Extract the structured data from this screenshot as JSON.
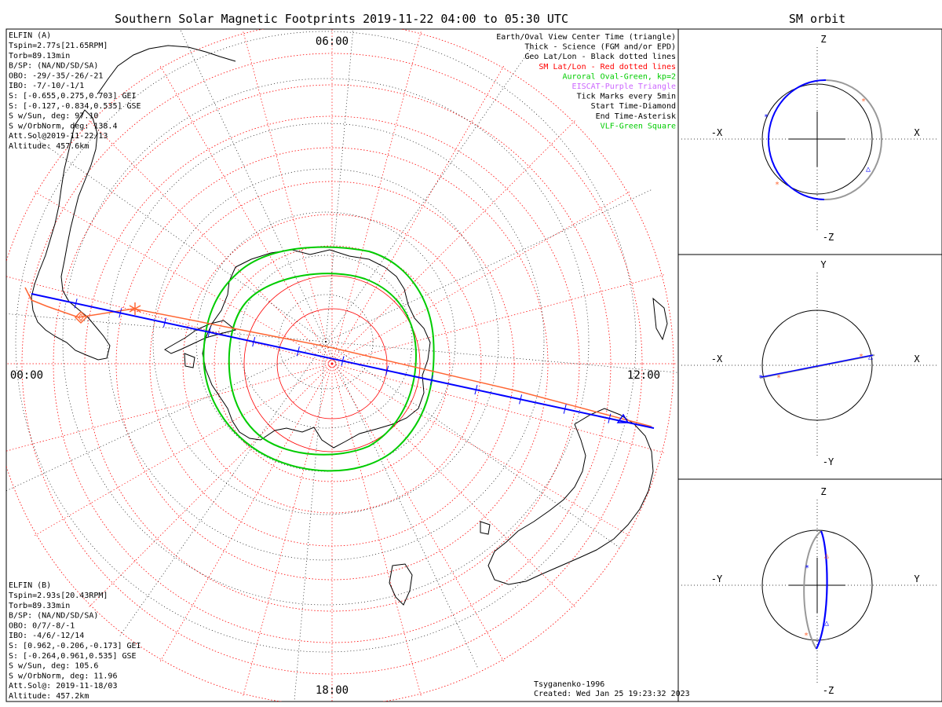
{
  "title": "Southern Solar Magnetic Footprints 2019-11-22 04:00 to 05:30 UTC",
  "right_title": "SM orbit",
  "colors": {
    "elfin_a": "#0000ff",
    "elfin_b": "#ff6633",
    "oval": "#00cc00",
    "grid": "#ff0000",
    "latlon": "#000000",
    "eiscat": "#cc66ff",
    "orbit_gray": "#999999"
  },
  "time_labels": {
    "top": "06:00",
    "left": "00:00",
    "right": "12:00",
    "bottom": "18:00"
  },
  "elfin_a": {
    "name": "ELFIN (A)",
    "lines": [
      "Tspin=2.77s[21.65RPM]",
      "Torb=89.13min",
      "B/SP: (NA/ND/SD/SA)",
      "OBO: -29/-35/-26/-21",
      "IBO: -7/-10/-1/1",
      "S: [-0.655,0.275,0.703] GEI",
      "S: [-0.127,-0.834,0.535] GSE",
      "S w/Sun, deg: 97.10",
      "S w/OrbNorm, deg: 138.4",
      "Att.Sol@2019-11-22/13",
      "Altitude: 457.6km"
    ]
  },
  "elfin_b": {
    "name": "ELFIN (B)",
    "lines": [
      "Tspin=2.93s[20.43RPM]",
      "Torb=89.33min",
      "B/SP: (NA/ND/SD/SA)",
      "OBO: 0/7/-8/-1",
      "IBO: -4/6/-12/14",
      "S: [0.962,-0.206,-0.173] GEI",
      "S: [-0.264,0.961,0.535] GSE",
      "S w/Sun, deg: 105.6",
      "S w/OrbNorm, deg: 11.96",
      "Att.Sol@: 2019-11-18/03",
      "Altitude: 457.2km"
    ]
  },
  "legend": [
    {
      "text": "Earth/Oval View Center Time (triangle)",
      "color": "#000000"
    },
    {
      "text": "Thick - Science (FGM and/or EPD)",
      "color": "#000000"
    },
    {
      "text": "Geo Lat/Lon - Black dotted lines",
      "color": "#000000"
    },
    {
      "text": "SM Lat/Lon - Red dotted lines",
      "color": "#ff0000"
    },
    {
      "text": "Auroral Oval-Green, kp=2",
      "color": "#00cc00"
    },
    {
      "text": "EISCAT-Purple Triangle",
      "color": "#cc66ff"
    },
    {
      "text": "Tick Marks every 5min",
      "color": "#000000"
    },
    {
      "text": "Start Time-Diamond",
      "color": "#000000"
    },
    {
      "text": "End Time-Asterisk",
      "color": "#000000"
    },
    {
      "text": "VLF-Green Square",
      "color": "#00cc00"
    }
  ],
  "credits": [
    "Tsyganenko-1996",
    "Created: Wed Jan 25 19:23:32 2023"
  ],
  "orbit_panels": [
    {
      "top": "Z",
      "bottom": "-Z",
      "left": "-X",
      "right": "X"
    },
    {
      "top": "Y",
      "bottom": "-Y",
      "left": "-X",
      "right": "X"
    },
    {
      "top": "Z",
      "bottom": "-Z",
      "left": "-Y",
      "right": "Y"
    }
  ]
}
